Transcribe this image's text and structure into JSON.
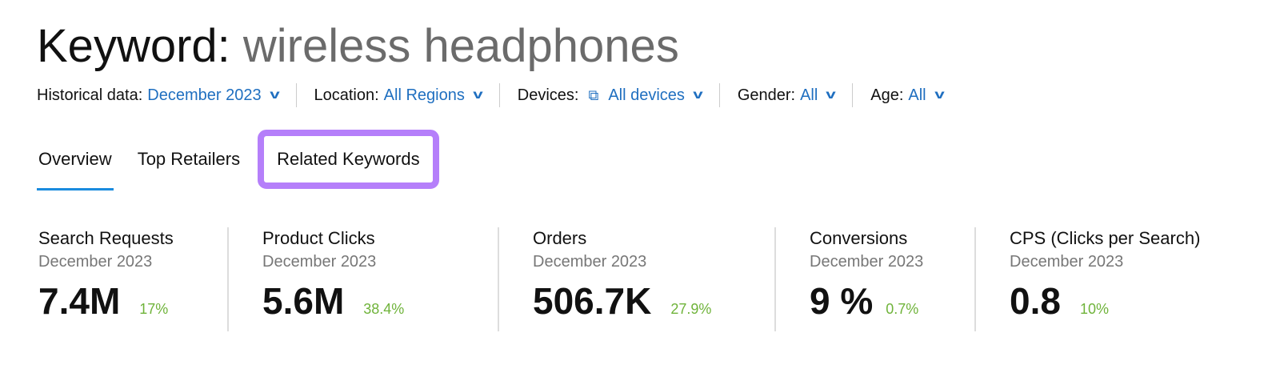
{
  "title": {
    "prefix": "Keyword:",
    "keyword": "wireless headphones"
  },
  "filters": [
    {
      "label": "Historical data:",
      "value": "December 2023"
    },
    {
      "label": "Location:",
      "value": "All Regions"
    },
    {
      "label": "Devices:",
      "value": "All devices",
      "icon": "devices-icon"
    },
    {
      "label": "Gender:",
      "value": "All"
    },
    {
      "label": "Age:",
      "value": "All"
    }
  ],
  "tabs": [
    {
      "label": "Overview",
      "active": true
    },
    {
      "label": "Top Retailers"
    },
    {
      "label": "Related Keywords",
      "highlight": "#b57ffa"
    }
  ],
  "metrics": [
    {
      "name": "Search Requests",
      "date": "December 2023",
      "value": "7.4M",
      "change": "17%"
    },
    {
      "name": "Product Clicks",
      "date": "December 2023",
      "value": "5.6M",
      "change": "38.4%"
    },
    {
      "name": "Orders",
      "date": "December 2023",
      "value": "506.7K",
      "change": "27.9%"
    },
    {
      "name": "Conversions",
      "date": "December 2023",
      "value": "9 %",
      "change": "0.7%"
    },
    {
      "name": "CPS (Clicks per Search)",
      "date": "December 2023",
      "value": "0.8",
      "change": "10%"
    }
  ],
  "colors": {
    "link": "#1f6fc0",
    "positive": "#6fb33a",
    "tab_underline": "#1a8bde"
  }
}
